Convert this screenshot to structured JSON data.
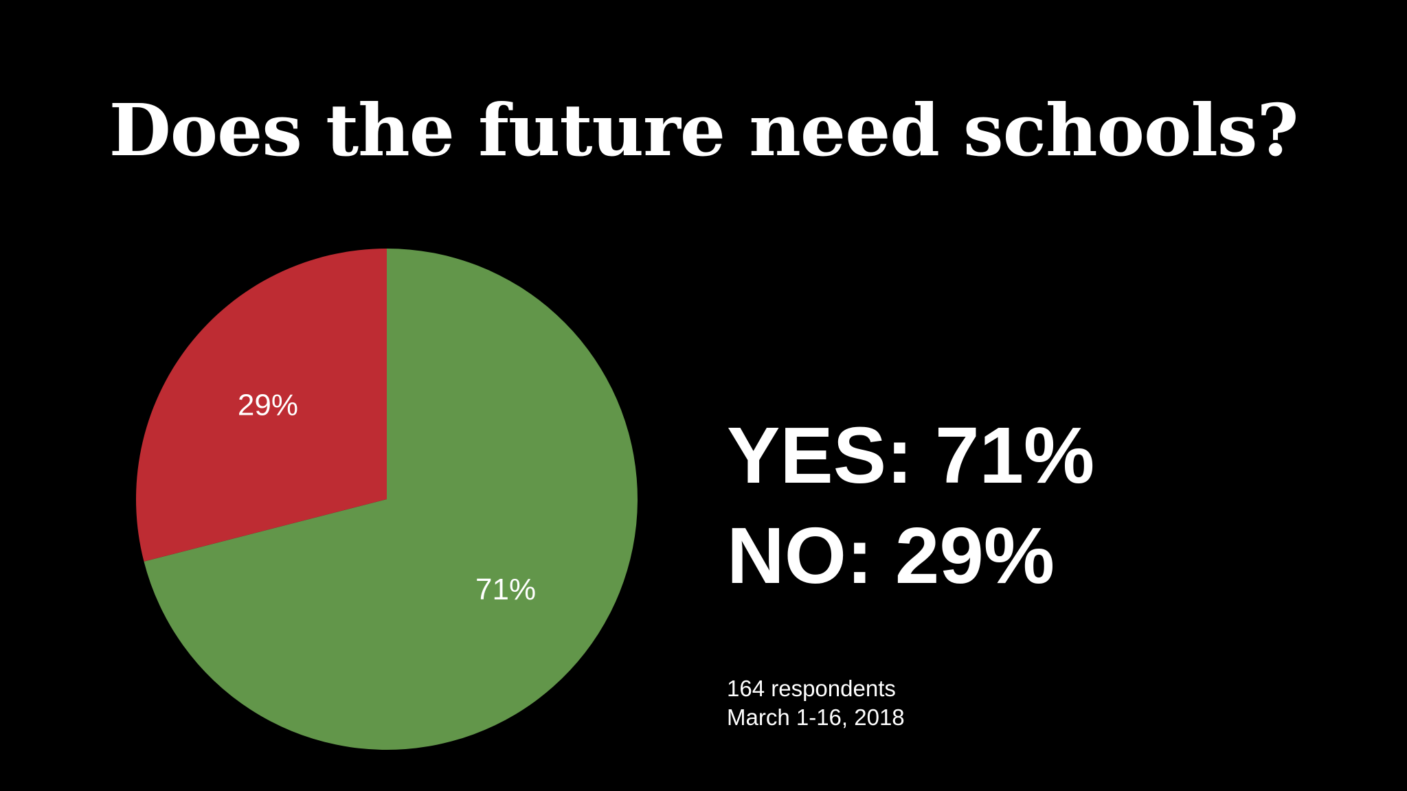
{
  "chart_data": {
    "type": "pie",
    "title": "Does the future need schools?",
    "slices": [
      {
        "label": "YES",
        "value": 71,
        "data_label": "71%",
        "color": "#62964a"
      },
      {
        "label": "NO",
        "value": 29,
        "data_label": "29%",
        "color": "#be2c33"
      }
    ],
    "start": "12 o'clock, clockwise"
  },
  "summary": {
    "yes_line": "YES: 71%",
    "no_line": "NO: 29%"
  },
  "footnote": {
    "respondents": "164 respondents",
    "dates": "March 1-16, 2018"
  }
}
